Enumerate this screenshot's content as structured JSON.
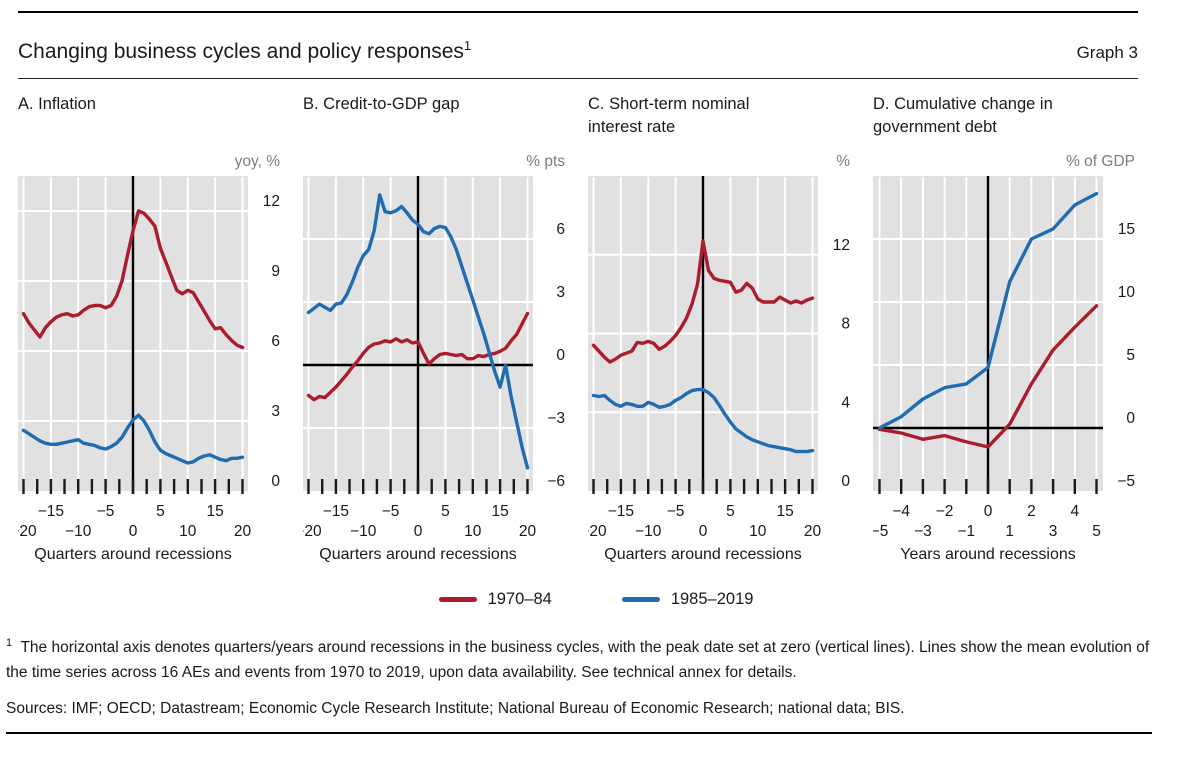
{
  "header": {
    "title": "Changing business cycles and policy responses",
    "title_sup": "1",
    "graph_label": "Graph 3"
  },
  "colors": {
    "red": "#aa1c2e",
    "blue": "#206cb0",
    "plot_bg": "#e1e1e1",
    "grid": "#ffffff",
    "zero_line": "#000000",
    "tick": "#1a1a1a",
    "unit_text": "#7c7c7c",
    "text": "#1a1a1a"
  },
  "legend": [
    {
      "label": "1970–84",
      "color_key": "red"
    },
    {
      "label": "1985–2019",
      "color_key": "blue"
    }
  ],
  "footnote": {
    "marker": "1",
    "text": "The horizontal axis denotes quarters/years around recessions in the business cycles, with the peak date set at zero (vertical lines). Lines show the mean evolution of the time series across 16 AEs and events from 1970 to 2019, upon data availability. See technical annex for details."
  },
  "sources": "Sources: IMF; OECD; Datastream; Economic Cycle Research Institute; National Bureau of Economic Research; national data; BIS.",
  "chart_data": [
    {
      "type": "line",
      "panel_letter": "A",
      "title": "A. Inflation",
      "unit": "yoy, %",
      "xlabel": "Quarters around recessions",
      "x_start": -20,
      "x_step": 1,
      "xlim": [
        -21,
        21
      ],
      "ylim": [
        0,
        13.5
      ],
      "xgrid": {
        "from": -20,
        "to": 20,
        "step": 5
      },
      "ticks": {
        "from": -20,
        "to": 20,
        "step": 2.5
      },
      "zero_hline": false,
      "yticks": [
        {
          "v": 0,
          "label": "0"
        },
        {
          "v": 3,
          "label": "3"
        },
        {
          "v": 6,
          "label": "6"
        },
        {
          "v": 9,
          "label": "9"
        },
        {
          "v": 12,
          "label": "12"
        }
      ],
      "xlabels_row1": [
        {
          "v": -15,
          "label": "−15"
        },
        {
          "v": -5,
          "label": "−5"
        },
        {
          "v": 5,
          "label": "5"
        },
        {
          "v": 15,
          "label": "15"
        }
      ],
      "xlabels_row2": [
        {
          "v": -20,
          "label": "−20"
        },
        {
          "v": -10,
          "label": "−10"
        },
        {
          "v": 0,
          "label": "0"
        },
        {
          "v": 10,
          "label": "10"
        },
        {
          "v": 20,
          "label": "20"
        }
      ],
      "series": [
        {
          "name": "1970–84",
          "color_key": "red",
          "values": [
            7.6,
            7.2,
            6.9,
            6.6,
            7.0,
            7.25,
            7.45,
            7.55,
            7.6,
            7.5,
            7.55,
            7.75,
            7.9,
            7.95,
            7.95,
            7.85,
            7.95,
            8.35,
            9.0,
            10.1,
            11.15,
            12.0,
            11.9,
            11.65,
            11.35,
            10.4,
            9.8,
            9.2,
            8.6,
            8.45,
            8.6,
            8.5,
            8.1,
            7.7,
            7.3,
            6.95,
            7.0,
            6.7,
            6.45,
            6.25,
            6.15
          ]
        },
        {
          "name": "1985–2019",
          "color_key": "blue",
          "values": [
            2.6,
            2.45,
            2.3,
            2.15,
            2.05,
            2.0,
            2.0,
            2.05,
            2.1,
            2.15,
            2.2,
            2.05,
            2.0,
            1.95,
            1.85,
            1.8,
            1.9,
            2.05,
            2.3,
            2.7,
            3.05,
            3.25,
            3.0,
            2.6,
            2.1,
            1.75,
            1.6,
            1.5,
            1.4,
            1.3,
            1.2,
            1.25,
            1.4,
            1.5,
            1.55,
            1.45,
            1.35,
            1.3,
            1.4,
            1.4,
            1.45
          ]
        }
      ]
    },
    {
      "type": "line",
      "panel_letter": "B",
      "title": "B. Credit-to-GDP gap",
      "unit": "% pts",
      "xlabel": "Quarters around recessions",
      "x_start": -20,
      "x_step": 1,
      "xlim": [
        -21,
        21
      ],
      "ylim": [
        -6,
        9
      ],
      "xgrid": {
        "from": -20,
        "to": 20,
        "step": 5
      },
      "ticks": {
        "from": -20,
        "to": 20,
        "step": 2.5
      },
      "zero_hline": true,
      "yticks": [
        {
          "v": -6,
          "label": "−6"
        },
        {
          "v": -3,
          "label": "−3"
        },
        {
          "v": 0,
          "label": "0"
        },
        {
          "v": 3,
          "label": "3"
        },
        {
          "v": 6,
          "label": "6"
        }
      ],
      "xlabels_row1": [
        {
          "v": -15,
          "label": "−15"
        },
        {
          "v": -5,
          "label": "−5"
        },
        {
          "v": 5,
          "label": "5"
        },
        {
          "v": 15,
          "label": "15"
        }
      ],
      "xlabels_row2": [
        {
          "v": -20,
          "label": "−20"
        },
        {
          "v": -10,
          "label": "−10"
        },
        {
          "v": 0,
          "label": "0"
        },
        {
          "v": 10,
          "label": "10"
        },
        {
          "v": 20,
          "label": "20"
        }
      ],
      "series": [
        {
          "name": "1970–84",
          "color_key": "red",
          "values": [
            -1.45,
            -1.65,
            -1.5,
            -1.55,
            -1.3,
            -1.05,
            -0.75,
            -0.45,
            -0.1,
            0.2,
            0.55,
            0.85,
            1.0,
            1.05,
            1.15,
            1.1,
            1.25,
            1.1,
            1.2,
            1.05,
            1.1,
            0.55,
            0.05,
            0.3,
            0.5,
            0.55,
            0.5,
            0.45,
            0.5,
            0.3,
            0.3,
            0.45,
            0.4,
            0.5,
            0.55,
            0.65,
            0.8,
            1.15,
            1.45,
            1.95,
            2.45
          ]
        },
        {
          "name": "1985–2019",
          "color_key": "blue",
          "values": [
            2.5,
            2.7,
            2.9,
            2.75,
            2.6,
            2.9,
            2.95,
            3.35,
            3.95,
            4.65,
            5.2,
            5.5,
            6.4,
            8.1,
            7.3,
            7.25,
            7.35,
            7.55,
            7.25,
            6.9,
            6.7,
            6.35,
            6.25,
            6.5,
            6.6,
            6.55,
            6.1,
            5.5,
            4.7,
            3.9,
            3.1,
            2.3,
            1.5,
            0.6,
            -0.3,
            -1.05,
            0.0,
            -1.5,
            -2.7,
            -3.9,
            -4.9
          ]
        }
      ]
    },
    {
      "type": "line",
      "panel_letter": "C",
      "title": "C. Short-term nominal interest rate",
      "unit": "%",
      "xlabel": "Quarters around recessions",
      "x_start": -20,
      "x_step": 1,
      "xlim": [
        -21,
        21
      ],
      "ylim": [
        0,
        16
      ],
      "xgrid": {
        "from": -20,
        "to": 20,
        "step": 5
      },
      "ticks": {
        "from": -20,
        "to": 20,
        "step": 2.5
      },
      "zero_hline": false,
      "yticks": [
        {
          "v": 0,
          "label": "0"
        },
        {
          "v": 4,
          "label": "4"
        },
        {
          "v": 8,
          "label": "8"
        },
        {
          "v": 12,
          "label": "12"
        }
      ],
      "xlabels_row1": [
        {
          "v": -15,
          "label": "−15"
        },
        {
          "v": -5,
          "label": "−5"
        },
        {
          "v": 5,
          "label": "5"
        },
        {
          "v": 15,
          "label": "15"
        }
      ],
      "xlabels_row2": [
        {
          "v": -20,
          "label": "−20"
        },
        {
          "v": -10,
          "label": "−10"
        },
        {
          "v": 0,
          "label": "0"
        },
        {
          "v": 10,
          "label": "10"
        },
        {
          "v": 20,
          "label": "20"
        }
      ],
      "series": [
        {
          "name": "1970–84",
          "color_key": "red",
          "values": [
            7.4,
            7.1,
            6.8,
            6.55,
            6.7,
            6.9,
            7.0,
            7.1,
            7.55,
            7.5,
            7.6,
            7.5,
            7.2,
            7.35,
            7.6,
            7.9,
            8.3,
            8.8,
            9.5,
            10.5,
            12.7,
            11.2,
            10.8,
            10.7,
            10.65,
            10.6,
            10.1,
            10.2,
            10.55,
            10.3,
            9.75,
            9.6,
            9.6,
            9.6,
            9.85,
            9.7,
            9.55,
            9.65,
            9.55,
            9.7,
            9.8
          ]
        },
        {
          "name": "1985–2019",
          "color_key": "blue",
          "values": [
            4.85,
            4.8,
            4.85,
            4.6,
            4.4,
            4.3,
            4.45,
            4.4,
            4.3,
            4.3,
            4.5,
            4.4,
            4.25,
            4.3,
            4.4,
            4.6,
            4.75,
            4.95,
            5.1,
            5.15,
            5.15,
            5.0,
            4.75,
            4.35,
            3.9,
            3.5,
            3.15,
            2.95,
            2.75,
            2.6,
            2.5,
            2.4,
            2.3,
            2.25,
            2.2,
            2.15,
            2.1,
            2.0,
            2.0,
            2.0,
            2.05
          ]
        }
      ]
    },
    {
      "type": "line",
      "panel_letter": "D",
      "title": "D. Cumulative change in government debt",
      "unit": "% of GDP",
      "xlabel": "Years around recessions",
      "x_start": -5,
      "x_step": 1,
      "xlim": [
        -5.3,
        5.3
      ],
      "ylim": [
        -5,
        20
      ],
      "xgrid": {
        "from": -5,
        "to": 5,
        "step": 1
      },
      "ticks": {
        "from": -5,
        "to": 5,
        "step": 1
      },
      "zero_hline": true,
      "yticks": [
        {
          "v": -5,
          "label": "−5"
        },
        {
          "v": 0,
          "label": "0"
        },
        {
          "v": 5,
          "label": "5"
        },
        {
          "v": 10,
          "label": "10"
        },
        {
          "v": 15,
          "label": "15"
        }
      ],
      "xlabels_row1": [
        {
          "v": -4,
          "label": "−4"
        },
        {
          "v": -2,
          "label": "−2"
        },
        {
          "v": 0,
          "label": "0"
        },
        {
          "v": 2,
          "label": "2"
        },
        {
          "v": 4,
          "label": "4"
        }
      ],
      "xlabels_row2": [
        {
          "v": -5,
          "label": "−5"
        },
        {
          "v": -3,
          "label": "−3"
        },
        {
          "v": -1,
          "label": "−1"
        },
        {
          "v": 1,
          "label": "1"
        },
        {
          "v": 3,
          "label": "3"
        },
        {
          "v": 5,
          "label": "5"
        }
      ],
      "series": [
        {
          "name": "1970–84",
          "color_key": "red",
          "values": [
            -0.1,
            -0.4,
            -0.9,
            -0.6,
            -1.1,
            -1.5,
            0.3,
            3.5,
            6.2,
            8.0,
            9.7
          ]
        },
        {
          "name": "1985–2019",
          "color_key": "blue",
          "values": [
            0.0,
            0.9,
            2.3,
            3.2,
            3.5,
            4.8,
            11.6,
            15.0,
            15.8,
            17.7,
            18.6
          ]
        }
      ]
    }
  ]
}
